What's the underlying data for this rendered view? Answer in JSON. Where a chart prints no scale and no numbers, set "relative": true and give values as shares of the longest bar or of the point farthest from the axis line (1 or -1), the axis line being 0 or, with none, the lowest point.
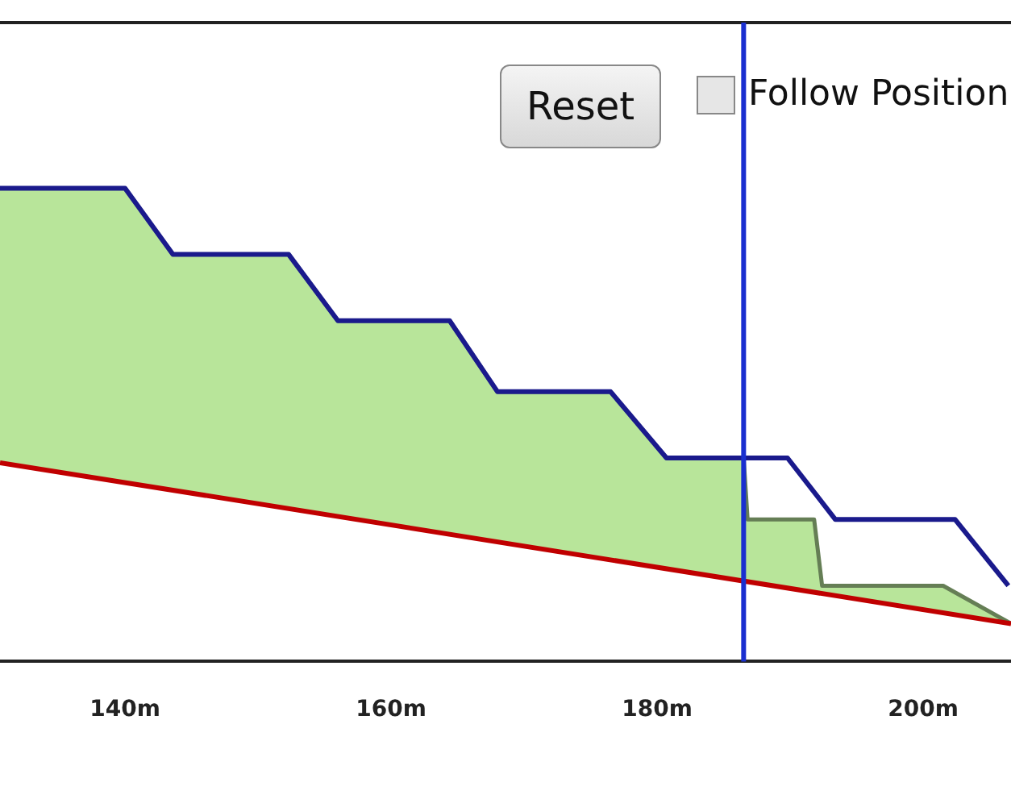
{
  "chart_data": {
    "type": "line",
    "relative": true,
    "xlim": [
      130.6,
      206.6
    ],
    "xticks": [
      {
        "value": 140,
        "label": "140m"
      },
      {
        "value": 160,
        "label": "160m"
      },
      {
        "value": 180,
        "label": "180m"
      },
      {
        "value": 200,
        "label": "200m"
      }
    ],
    "tick_labels": "x",
    "grid": false,
    "legend": false,
    "marker": "none",
    "line_style": "solid",
    "series": [
      {
        "type": "line",
        "color": "#c00000",
        "x": [
          130.6,
          206.6
        ],
        "values": [
          0.42,
          0.08
        ]
      },
      {
        "type": "area",
        "color": "#b8e59a",
        "x": [
          130.6,
          140,
          143.6,
          152.3,
          156,
          164.4,
          168,
          176.5,
          180.7,
          186.5,
          186.8,
          191.8,
          192.4,
          201.5,
          206.6
        ],
        "values": [
          1.0,
          1.0,
          0.86,
          0.86,
          0.72,
          0.72,
          0.57,
          0.57,
          0.43,
          0.43,
          0.3,
          0.3,
          0.16,
          0.16,
          0.08
        ]
      },
      {
        "type": "line",
        "color": "#1a1a8c",
        "x": [
          130.6,
          140,
          143.6,
          152.3,
          156,
          164.4,
          168,
          176.5,
          180.7,
          189.8,
          193.4,
          202.4,
          206.4
        ],
        "values": [
          1.0,
          1.0,
          0.86,
          0.86,
          0.72,
          0.72,
          0.57,
          0.57,
          0.43,
          0.43,
          0.3,
          0.3,
          0.16
        ]
      }
    ],
    "ref_lines": [
      {
        "axis": "x",
        "value": 186.5,
        "color": "#1a2fd0"
      }
    ],
    "annotations": [
      "Reset",
      "Follow Position"
    ]
  }
}
